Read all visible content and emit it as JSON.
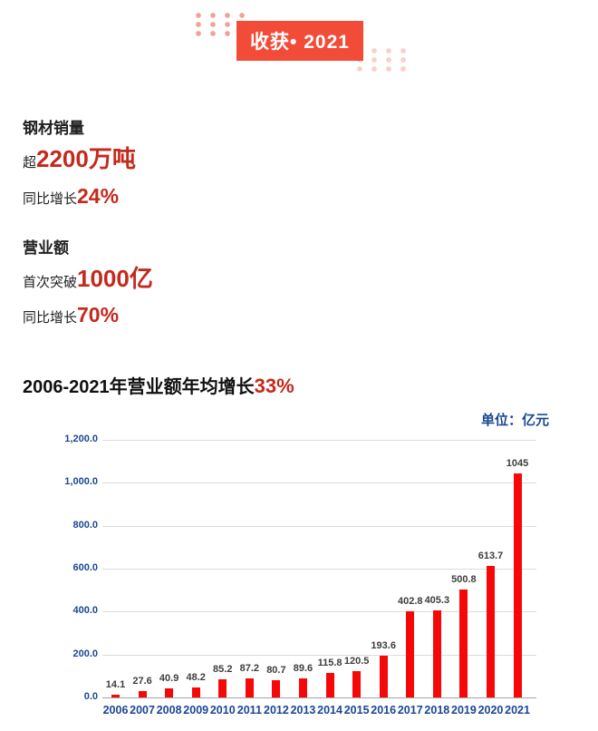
{
  "banner": {
    "title": "收获• 2021"
  },
  "stats": [
    {
      "heading": "钢材销量",
      "lines": [
        {
          "prefix": "超",
          "value": "2200万吨"
        },
        {
          "prefix": "同比增长",
          "value": "24%"
        }
      ]
    },
    {
      "heading": "营业额",
      "lines": [
        {
          "prefix": "首次突破",
          "value": "1000亿"
        },
        {
          "prefix": "同比增长",
          "value": "70%"
        }
      ]
    }
  ],
  "chart_title": {
    "text": "2006-2021年营业额年均增长",
    "highlight": "33%"
  },
  "chart_data": {
    "type": "bar",
    "title": "2006-2021年营业额年均增长33%",
    "unit_label": "单位：亿元",
    "categories": [
      "2006",
      "2007",
      "2008",
      "2009",
      "2010",
      "2011",
      "2012",
      "2013",
      "2014",
      "2015",
      "2016",
      "2017",
      "2018",
      "2019",
      "2020",
      "2021"
    ],
    "values": [
      14.1,
      27.6,
      40.9,
      48.2,
      85.2,
      87.2,
      80.7,
      89.6,
      115.8,
      120.5,
      193.6,
      402.8,
      405.3,
      500.8,
      613.7,
      1045
    ],
    "value_labels": [
      "14.1",
      "27.6",
      "40.9",
      "48.2",
      "85.2",
      "87.2",
      "80.7",
      "89.6",
      "115.8",
      "120.5",
      "193.6",
      "402.8",
      "405.3",
      "500.8",
      "613.7",
      "1045"
    ],
    "xlabel": "",
    "ylabel": "",
    "ylim": [
      0,
      1200
    ],
    "ytick_step": 200,
    "ytick_labels": [
      "0.0",
      "200.0",
      "400.0",
      "600.0",
      "800.0",
      "1,000.0",
      "1,200.0"
    ],
    "grid": true,
    "legend": "none",
    "bar_color": "#f70808",
    "axis_label_color": "#1a4793",
    "data_label_color": "#3d3d3d",
    "grid_color": "#dcdcdc"
  },
  "colors": {
    "banner_bg": "#f24b38",
    "accent_red_text": "#c4291b",
    "dots_top_left": "#f2a196",
    "dots_bottom_right": "#f8d0c8"
  }
}
